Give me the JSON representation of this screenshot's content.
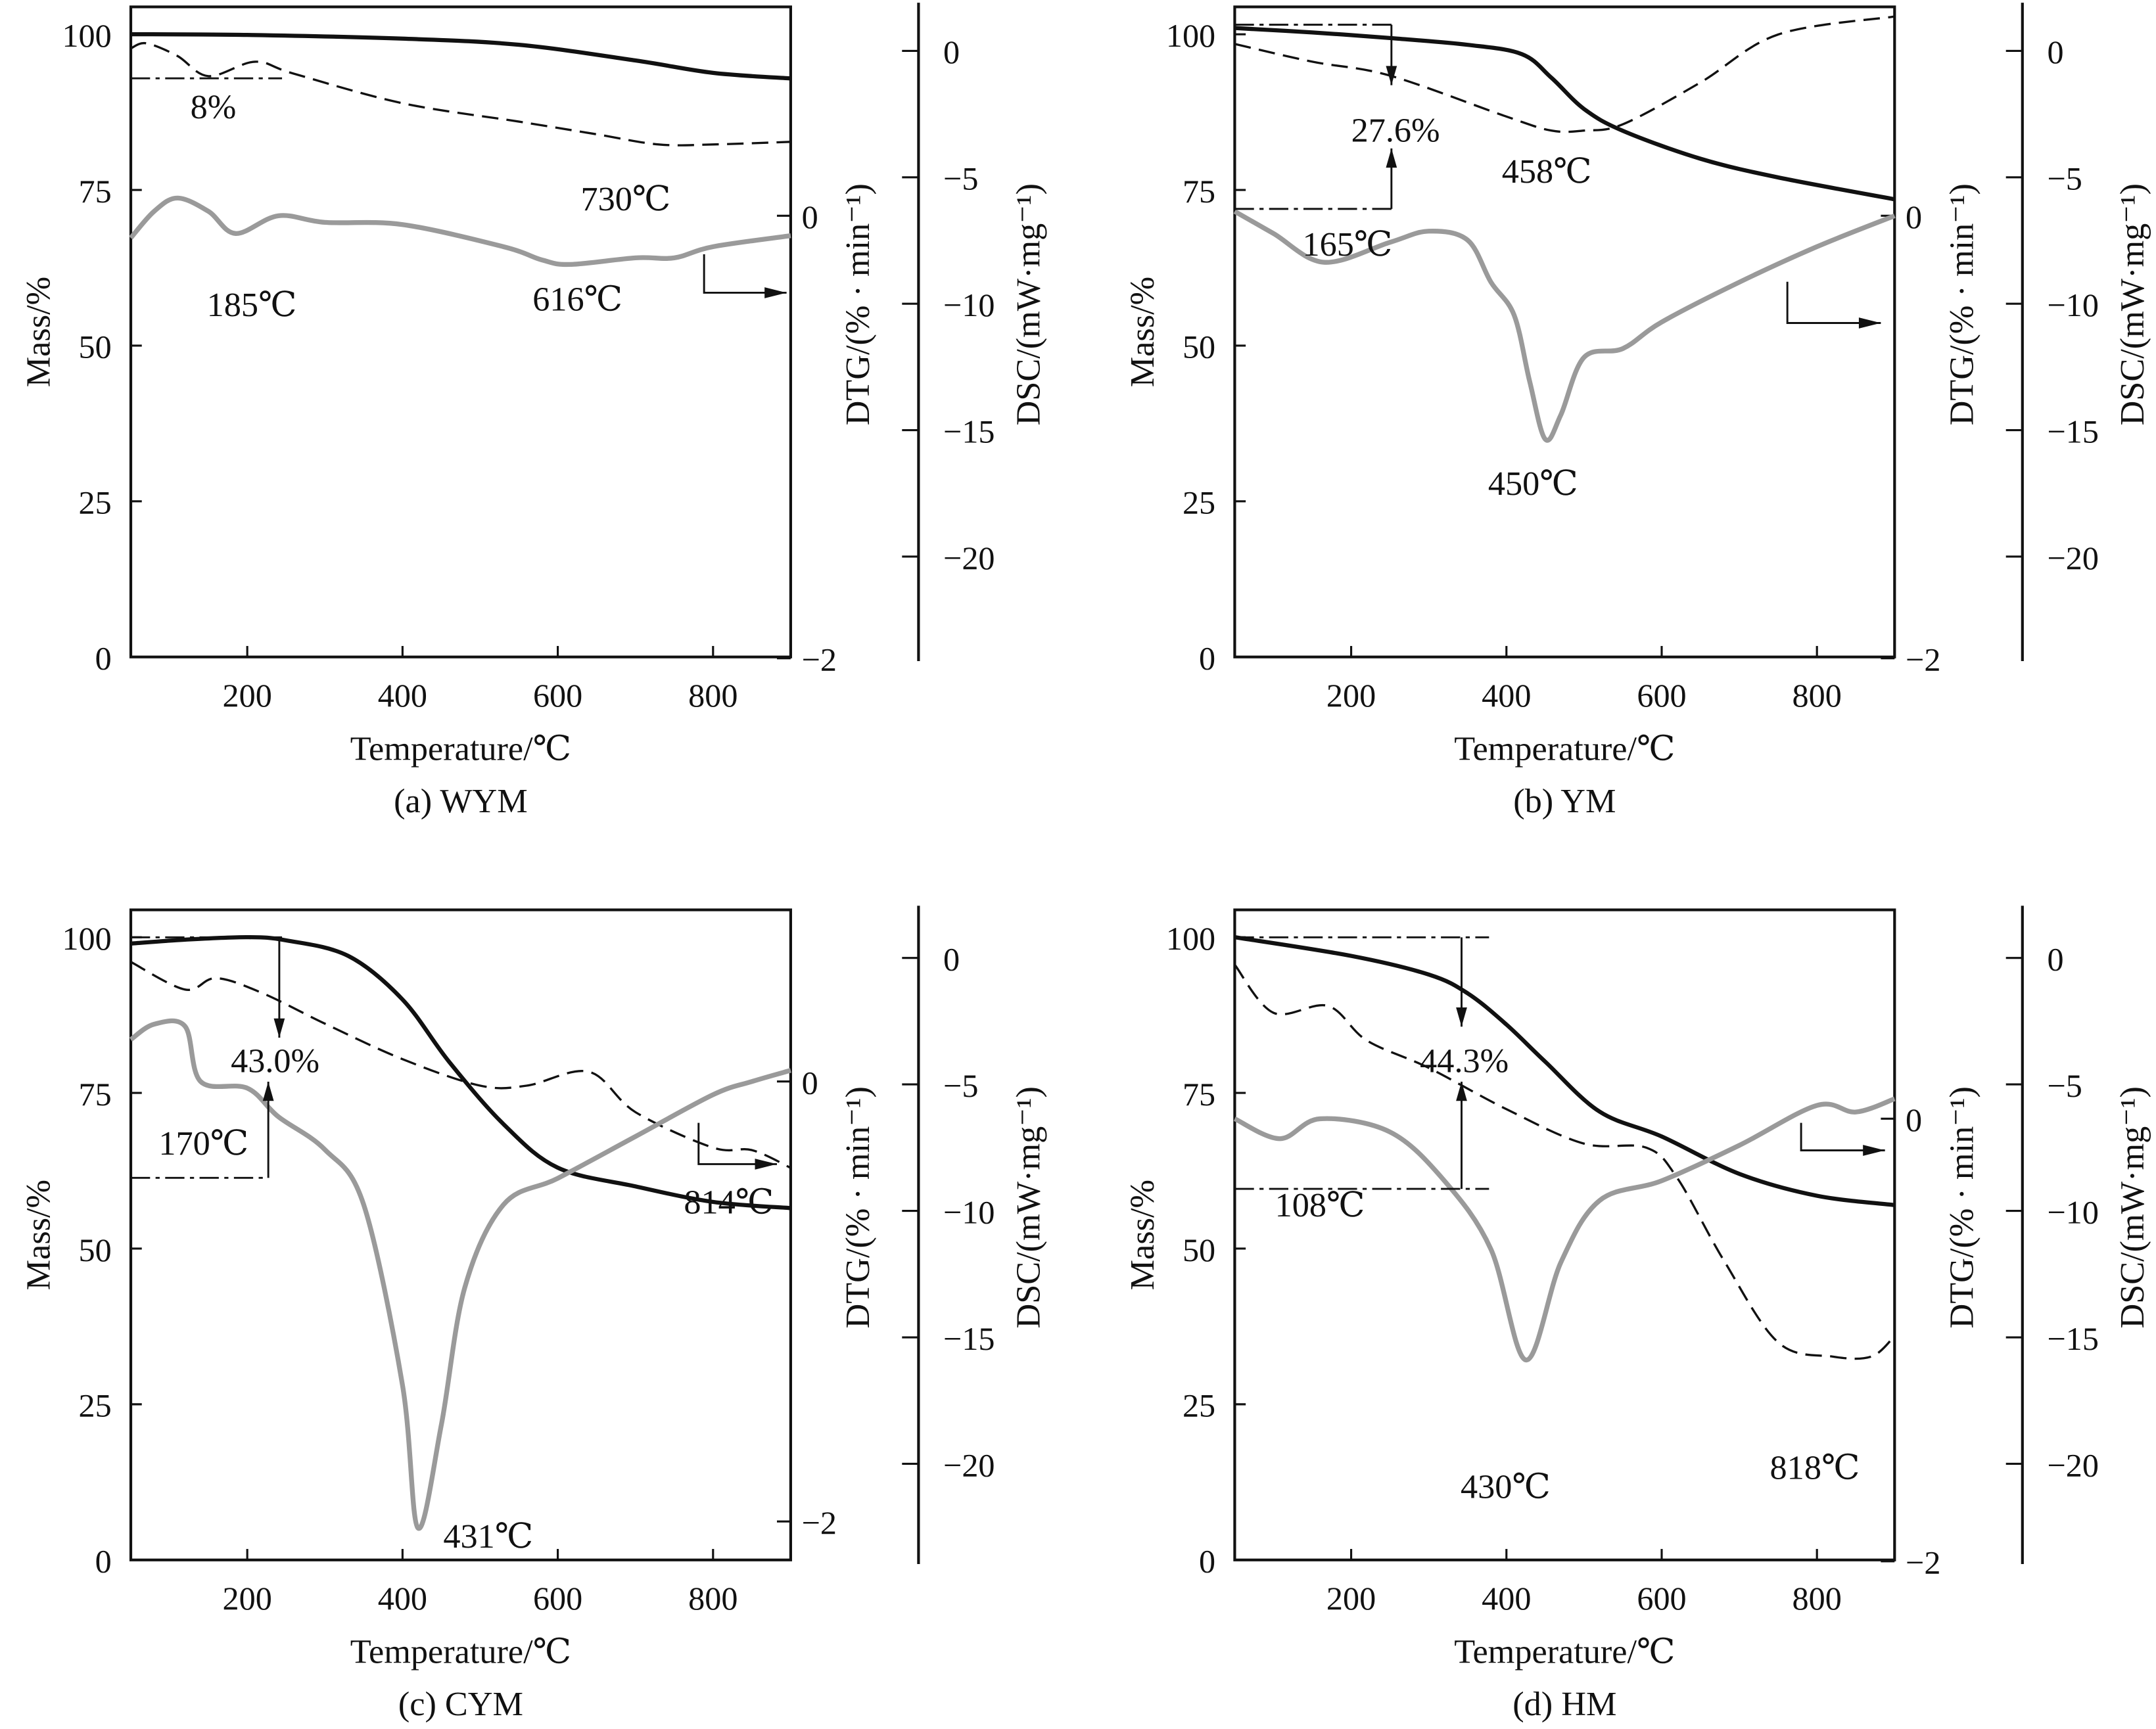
{
  "chart_data": [
    {
      "type": "line",
      "caption": "(a) WYM",
      "xlabel": "Temperature/℃",
      "ylabel_left": "Mass/%",
      "ylabel_right1": "DTG/(% · min⁻¹)",
      "ylabel_right2": "DSC/(mW·mg⁻¹)",
      "xlim": [
        50,
        900
      ],
      "x_ticks": [
        200,
        400,
        600,
        800
      ],
      "mass_ylim": [
        0,
        104.4
      ],
      "mass_ticks": [
        0,
        25,
        50,
        75,
        100
      ],
      "dtg_ylim": [
        -1.994,
        0.944
      ],
      "dtg_ticks": [
        0,
        -2
      ],
      "dsc_ylim": [
        -23.97,
        1.74
      ],
      "dsc_ticks": [
        0,
        -5,
        -10,
        -15,
        -20
      ],
      "series": [
        {
          "key": "TG",
          "axis": "mass",
          "style": "solid-black",
          "x": [
            50,
            200,
            400,
            550,
            700,
            800,
            900
          ],
          "y": [
            100,
            99.9,
            99.3,
            98.3,
            95.8,
            93.8,
            92.9
          ]
        },
        {
          "key": "DSC",
          "axis": "dsc",
          "style": "dashed-black",
          "x": [
            50,
            70,
            110,
            150,
            210,
            260,
            400,
            550,
            650,
            730,
            800,
            900
          ],
          "y": [
            0.1,
            0.3,
            -0.2,
            -1.0,
            -0.43,
            -0.9,
            -2.07,
            -2.8,
            -3.3,
            -3.7,
            -3.7,
            -3.6
          ]
        },
        {
          "key": "DTG",
          "axis": "dtg",
          "style": "gray",
          "x": [
            50,
            80,
            110,
            150,
            185,
            240,
            300,
            400,
            530,
            580,
            616,
            700,
            750,
            800,
            900
          ],
          "y": [
            -0.1,
            0.02,
            0.08,
            0.02,
            -0.08,
            0,
            -0.03,
            -0.04,
            -0.14,
            -0.2,
            -0.22,
            -0.19,
            -0.19,
            -0.14,
            -0.09
          ]
        }
      ],
      "annotations": [
        "8%",
        "730℃",
        "185℃",
        "616℃"
      ]
    },
    {
      "type": "line",
      "caption": "(b) YM",
      "xlabel": "Temperature/℃",
      "ylabel_left": "Mass/%",
      "ylabel_right1": "DTG/(% · min⁻¹)",
      "ylabel_right2": "DSC/(mW·mg⁻¹)",
      "xlim": [
        50,
        900
      ],
      "x_ticks": [
        200,
        400,
        600,
        800
      ],
      "mass_ylim": [
        0,
        104.4
      ],
      "mass_ticks": [
        0,
        25,
        50,
        75,
        100
      ],
      "dtg_ylim": [
        -1.994,
        0.944
      ],
      "dtg_ticks": [
        0,
        -2
      ],
      "dsc_ylim": [
        -23.97,
        1.74
      ],
      "dsc_ticks": [
        0,
        -5,
        -10,
        -15,
        -20
      ],
      "series": [
        {
          "key": "TG",
          "axis": "mass",
          "style": "solid-black",
          "x": [
            50,
            150,
            250,
            350,
            420,
            458,
            500,
            550,
            650,
            750,
            900
          ],
          "y": [
            101,
            100.3,
            99.4,
            98.3,
            96.8,
            93,
            88,
            84.5,
            80,
            77,
            73.5
          ]
        },
        {
          "key": "DSC",
          "axis": "dsc",
          "style": "dashed-black",
          "x": [
            50,
            150,
            250,
            400,
            458,
            500,
            550,
            650,
            750,
            900
          ],
          "y": [
            0.27,
            -0.43,
            -0.98,
            -2.6,
            -3.15,
            -3.15,
            -2.9,
            -1.25,
            0.65,
            1.36
          ]
        },
        {
          "key": "DTG",
          "axis": "dtg",
          "style": "gray",
          "x": [
            50,
            100,
            165,
            250,
            300,
            350,
            380,
            410,
            430,
            450,
            470,
            500,
            550,
            600,
            700,
            800,
            900
          ],
          "y": [
            0.02,
            -0.08,
            -0.21,
            -0.12,
            -0.07,
            -0.11,
            -0.3,
            -0.45,
            -0.75,
            -1.01,
            -0.9,
            -0.64,
            -0.6,
            -0.48,
            -0.3,
            -0.14,
            0.0
          ]
        }
      ],
      "annotations": [
        "27.6%",
        "458℃",
        "165℃",
        "450℃"
      ]
    },
    {
      "type": "line",
      "caption": "(c) CYM",
      "xlabel": "Temperature/℃",
      "ylabel_left": "Mass/%",
      "ylabel_right1": "DTG/(% · min⁻¹)",
      "ylabel_right2": "DSC/(mW·mg⁻¹)",
      "xlim": [
        50,
        900
      ],
      "x_ticks": [
        200,
        400,
        600,
        800
      ],
      "mass_ylim": [
        0,
        104.4
      ],
      "mass_ticks": [
        0,
        25,
        50,
        75,
        100
      ],
      "dtg_ylim": [
        -2.175,
        0.78
      ],
      "dtg_ticks": [
        0,
        -2
      ],
      "dsc_ylim": [
        -23.8,
        1.9
      ],
      "dsc_ticks": [
        0,
        -5,
        -10,
        -15,
        -20
      ],
      "series": [
        {
          "key": "TG",
          "axis": "mass",
          "style": "solid-black",
          "x": [
            50,
            120,
            200,
            250,
            330,
            400,
            460,
            530,
            600,
            700,
            800,
            900
          ],
          "y": [
            99,
            99.6,
            100,
            99.5,
            97,
            90,
            80,
            70,
            63,
            60,
            57.5,
            56.5
          ]
        },
        {
          "key": "DSC",
          "axis": "dsc",
          "style": "dashed-black",
          "x": [
            50,
            120,
            160,
            220,
            300,
            400,
            500,
            560,
            640,
            700,
            800,
            850,
            900
          ],
          "y": [
            -0.16,
            -1.25,
            -0.8,
            -1.4,
            -2.6,
            -4.0,
            -5.05,
            -5.05,
            -4.5,
            -6.1,
            -7.5,
            -7.6,
            -8.3
          ]
        },
        {
          "key": "DTG",
          "axis": "dtg",
          "style": "gray",
          "x": [
            50,
            80,
            120,
            140,
            200,
            240,
            300,
            350,
            400,
            420,
            450,
            480,
            530,
            600,
            700,
            800,
            850,
            900
          ],
          "y": [
            0.19,
            0.26,
            0.25,
            0,
            -0.03,
            -0.16,
            -0.31,
            -0.56,
            -1.38,
            -2.03,
            -1.56,
            -0.94,
            -0.56,
            -0.44,
            -0.25,
            -0.06,
            0,
            0.05
          ]
        }
      ],
      "annotations": [
        "43.0%",
        "170℃",
        "431℃",
        "814℃"
      ]
    },
    {
      "type": "line",
      "caption": "(d) HM",
      "xlabel": "Temperature/℃",
      "ylabel_left": "Mass/%",
      "ylabel_right1": "DTG/(% · min⁻¹)",
      "ylabel_right2": "DSC/(mW·mg⁻¹)",
      "xlim": [
        50,
        900
      ],
      "x_ticks": [
        200,
        400,
        600,
        800
      ],
      "mass_ylim": [
        0,
        104.4
      ],
      "mass_ticks": [
        0,
        25,
        50,
        75,
        100
      ],
      "dtg_ylim": [
        -1.994,
        0.944
      ],
      "dtg_ticks": [
        0,
        -2
      ],
      "dsc_ylim": [
        -23.8,
        1.9
      ],
      "dsc_ticks": [
        0,
        -5,
        -10,
        -15,
        -20
      ],
      "series": [
        {
          "key": "TG",
          "axis": "mass",
          "style": "solid-black",
          "x": [
            50,
            200,
            300,
            350,
            400,
            450,
            520,
            600,
            700,
            800,
            900
          ],
          "y": [
            100,
            97,
            94,
            91,
            86,
            80,
            72,
            68,
            62,
            58.5,
            57
          ]
        },
        {
          "key": "DSC",
          "axis": "dsc",
          "style": "dashed-black",
          "x": [
            50,
            100,
            170,
            220,
            300,
            400,
            500,
            580,
            620,
            680,
            750,
            820,
            870,
            900
          ],
          "y": [
            -0.27,
            -2.17,
            -1.9,
            -3.26,
            -4.35,
            -5.98,
            -7.34,
            -7.5,
            -8.7,
            -11.96,
            -15.2,
            -15.76,
            -15.76,
            -14.95
          ]
        },
        {
          "key": "DTG",
          "axis": "dtg",
          "style": "gray",
          "x": [
            50,
            108,
            160,
            250,
            320,
            380,
            425,
            470,
            520,
            600,
            700,
            800,
            850,
            900
          ],
          "y": [
            0,
            -0.09,
            0,
            -0.06,
            -0.28,
            -0.59,
            -1.09,
            -0.65,
            -0.37,
            -0.28,
            -0.12,
            0.06,
            0.03,
            0.09
          ]
        }
      ],
      "annotations": [
        "44.3%",
        "108℃",
        "430℃",
        "818℃"
      ]
    }
  ]
}
